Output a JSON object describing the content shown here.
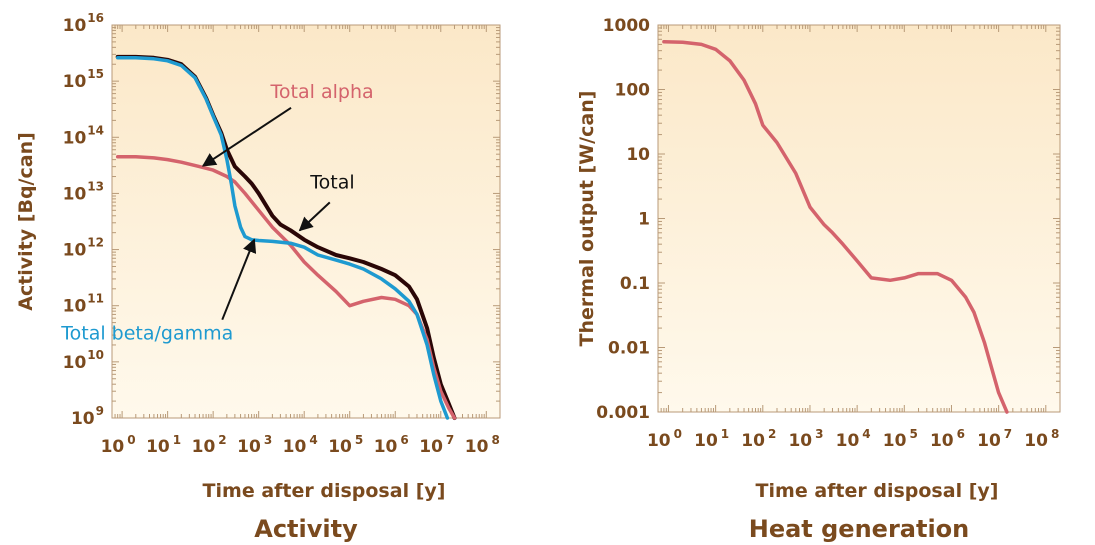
{
  "colors": {
    "total": "#2a0606",
    "alpha": "#d4636c",
    "beta": "#1e9ad0",
    "text": "#7a4a1e",
    "plot_top": "#fbe8c8",
    "plot_bottom": "#fff9ec",
    "frame": "#b89a78"
  },
  "chart_data": [
    {
      "type": "line",
      "caption": "Activity",
      "xlabel": "Time after disposal [y]",
      "ylabel": "Activity [Bq/can]",
      "x_scale": "log",
      "y_scale": "log",
      "xlim": [
        0.6,
        200000000
      ],
      "ylim": [
        1000000000,
        10000000000000000
      ],
      "x_ticks": [
        {
          "value": 1,
          "base": "10",
          "exp": "0"
        },
        {
          "value": 10,
          "base": "10",
          "exp": "1"
        },
        {
          "value": 100,
          "base": "10",
          "exp": "2"
        },
        {
          "value": 1000,
          "base": "10",
          "exp": "3"
        },
        {
          "value": 10000,
          "base": "10",
          "exp": "4"
        },
        {
          "value": 100000,
          "base": "10",
          "exp": "5"
        },
        {
          "value": 1000000,
          "base": "10",
          "exp": "6"
        },
        {
          "value": 10000000,
          "base": "10",
          "exp": "7"
        },
        {
          "value": 100000000,
          "base": "10",
          "exp": "8"
        }
      ],
      "y_ticks": [
        {
          "value": 1000000000,
          "base": "10",
          "exp": "9"
        },
        {
          "value": 10000000000,
          "base": "10",
          "exp": "10"
        },
        {
          "value": 100000000000,
          "base": "10",
          "exp": "11"
        },
        {
          "value": 1000000000000,
          "base": "10",
          "exp": "12"
        },
        {
          "value": 10000000000000,
          "base": "10",
          "exp": "13"
        },
        {
          "value": 100000000000000,
          "base": "10",
          "exp": "14"
        },
        {
          "value": 1000000000000000,
          "base": "10",
          "exp": "15"
        },
        {
          "value": 10000000000000000,
          "base": "10",
          "exp": "16"
        }
      ],
      "series": [
        {
          "key": "total",
          "name": "Total",
          "x": [
            0.8,
            2,
            5,
            10,
            20,
            40,
            70,
            100,
            150,
            200,
            300,
            500,
            700,
            1000,
            2000,
            3000,
            5000,
            10000,
            20000,
            50000,
            100000,
            200000,
            500000,
            1000000,
            2000000,
            3000000,
            5000000,
            7000000,
            10000000,
            15000000,
            20000000
          ],
          "y": [
            2700000000000000.0,
            2700000000000000.0,
            2600000000000000.0,
            2400000000000000.0,
            2000000000000000.0,
            1200000000000000.0,
            500000000000000.0,
            250000000000000.0,
            120000000000000.0,
            60000000000000.0,
            30000000000000.0,
            20000000000000.0,
            15000000000000.0,
            10000000000000.0,
            4000000000000.0,
            2800000000000.0,
            2200000000000.0,
            1500000000000.0,
            1100000000000.0,
            800000000000.0,
            700000000000.0,
            600000000000.0,
            450000000000.0,
            350000000000.0,
            220000000000.0,
            130000000000.0,
            40000000000.0,
            12000000000.0,
            4000000000.0,
            1800000000.0,
            1000000000.0
          ]
        },
        {
          "key": "alpha",
          "name": "Total alpha",
          "x": [
            0.8,
            2,
            5,
            10,
            20,
            50,
            100,
            200,
            300,
            500,
            1000,
            2000,
            5000,
            10000,
            20000,
            50000,
            100000,
            200000,
            500000,
            1000000,
            2000000,
            3000000,
            5000000,
            7000000,
            10000000,
            15000000,
            20000000
          ],
          "y": [
            45000000000000.0,
            45000000000000.0,
            43000000000000.0,
            40000000000000.0,
            36000000000000.0,
            30000000000000.0,
            26000000000000.0,
            20000000000000.0,
            16000000000000.0,
            10000000000000.0,
            5000000000000.0,
            2500000000000.0,
            1200000000000.0,
            600000000000.0,
            350000000000.0,
            180000000000.0,
            100000000000.0,
            120000000000.0,
            140000000000.0,
            130000000000.0,
            100000000000.0,
            70000000000.0,
            25000000000.0,
            8000000000.0,
            3000000000.0,
            1500000000.0,
            1000000000.0
          ]
        },
        {
          "key": "beta",
          "name": "Total beta/gamma",
          "x": [
            0.8,
            2,
            5,
            10,
            20,
            40,
            70,
            100,
            150,
            200,
            250,
            300,
            400,
            500,
            700,
            1000,
            2000,
            5000,
            10000,
            20000,
            50000,
            100000,
            200000,
            500000,
            1000000,
            2000000,
            3000000,
            5000000,
            7000000,
            10000000,
            14000000
          ],
          "y": [
            2600000000000000.0,
            2600000000000000.0,
            2500000000000000.0,
            2300000000000000.0,
            1900000000000000.0,
            1150000000000000.0,
            480000000000000.0,
            240000000000000.0,
            110000000000000.0,
            40000000000000.0,
            15000000000000.0,
            6000000000000.0,
            2500000000000.0,
            1700000000000.0,
            1500000000000.0,
            1450000000000.0,
            1400000000000.0,
            1300000000000.0,
            1100000000000.0,
            800000000000.0,
            650000000000.0,
            550000000000.0,
            450000000000.0,
            300000000000.0,
            200000000000.0,
            120000000000.0,
            70000000000.0,
            20000000000.0,
            6000000000.0,
            2000000000.0,
            1000000000.0
          ]
        }
      ],
      "annotations": [
        {
          "text": "Total alpha",
          "series": "alpha",
          "x": 60,
          "y": 31000000000000.0,
          "color": "alpha"
        },
        {
          "text": "Total",
          "series": "total",
          "x": 8000,
          "y": 2200000000000.0,
          "color": "black"
        },
        {
          "text": "Total beta/gamma",
          "series": "beta",
          "x": 800,
          "y": 1500000000000.0,
          "color": "beta"
        }
      ]
    },
    {
      "type": "line",
      "caption": "Heat generation",
      "xlabel": "Time after disposal [y]",
      "ylabel": "Thermal output  [W/can]",
      "x_scale": "log",
      "y_scale": "log",
      "xlim": [
        0.6,
        200000000
      ],
      "ylim": [
        0.001,
        1000
      ],
      "x_ticks": [
        {
          "value": 1,
          "base": "10",
          "exp": "0"
        },
        {
          "value": 10,
          "base": "10",
          "exp": "1"
        },
        {
          "value": 100,
          "base": "10",
          "exp": "2"
        },
        {
          "value": 1000,
          "base": "10",
          "exp": "3"
        },
        {
          "value": 10000,
          "base": "10",
          "exp": "4"
        },
        {
          "value": 100000,
          "base": "10",
          "exp": "5"
        },
        {
          "value": 1000000,
          "base": "10",
          "exp": "6"
        },
        {
          "value": 10000000,
          "base": "10",
          "exp": "7"
        },
        {
          "value": 100000000,
          "base": "10",
          "exp": "8"
        }
      ],
      "y_ticks": [
        {
          "value": 0.001,
          "label": "0.001"
        },
        {
          "value": 0.01,
          "label": "0.01"
        },
        {
          "value": 0.1,
          "label": "0.1"
        },
        {
          "value": 1,
          "label": "1"
        },
        {
          "value": 10,
          "label": "10"
        },
        {
          "value": 100,
          "label": "100"
        },
        {
          "value": 1000,
          "label": "1000"
        }
      ],
      "series": [
        {
          "key": "alpha",
          "x": [
            0.8,
            2,
            5,
            10,
            20,
            40,
            70,
            100,
            200,
            500,
            1000,
            2000,
            3000,
            5000,
            10000,
            20000,
            50000,
            100000,
            200000,
            500000,
            1000000,
            2000000,
            3000000,
            5000000,
            7000000,
            10000000,
            15000000
          ],
          "y": [
            550,
            540,
            500,
            420,
            280,
            140,
            60,
            28,
            15,
            5,
            1.5,
            0.8,
            0.6,
            0.4,
            0.22,
            0.12,
            0.11,
            0.12,
            0.14,
            0.14,
            0.11,
            0.06,
            0.035,
            0.012,
            0.005,
            0.002,
            0.001
          ]
        }
      ]
    }
  ]
}
